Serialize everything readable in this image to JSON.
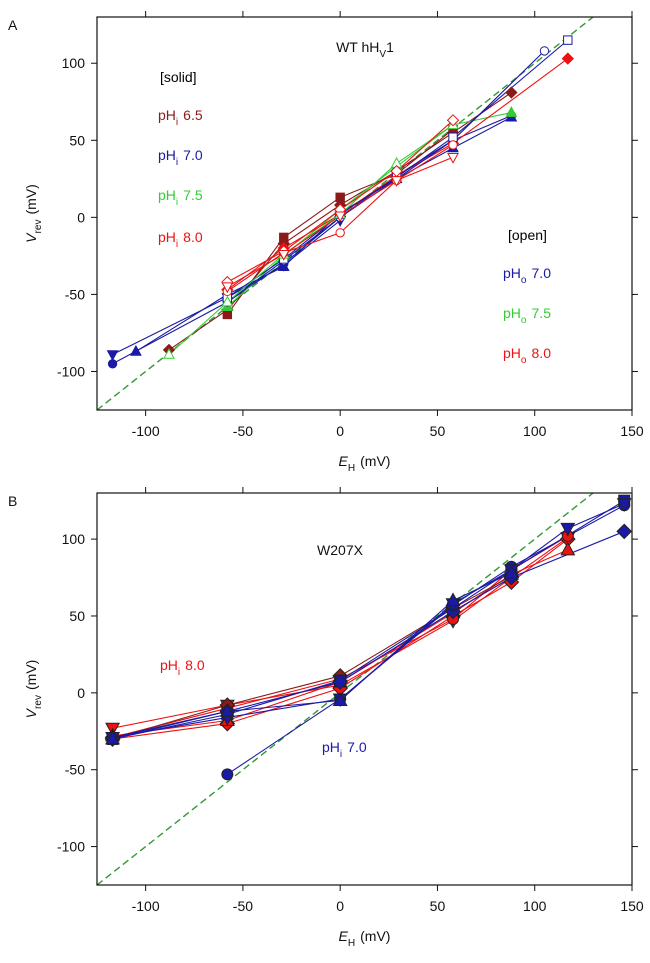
{
  "chart_data": [
    {
      "type": "line",
      "panel": "A",
      "title": {
        "text": "WT hH",
        "sub": "V",
        "rest": "1"
      },
      "xlabel": {
        "text": "E",
        "sub": "H",
        "rest": "(mV)"
      },
      "ylabel": {
        "text": "V",
        "sub": "rev",
        "rest": "(mV)"
      },
      "xlim": [
        -125,
        150
      ],
      "ylim": [
        -125,
        130
      ],
      "xticks": [
        -100,
        -50,
        0,
        50,
        100,
        150
      ],
      "yticks": [
        -100,
        -50,
        0,
        50,
        100
      ],
      "identity_line": {
        "color": "#339933",
        "dashed": true
      },
      "annotations": [
        {
          "text": "[solid]",
          "color": "#000000"
        },
        {
          "text": "pH",
          "sub": "i",
          "rest": "6.5",
          "color": "#8b1a1a"
        },
        {
          "text": "pH",
          "sub": "i",
          "rest": "7.0",
          "color": "#1a1aa6"
        },
        {
          "text": "pH",
          "sub": "i",
          "rest": "7.5",
          "color": "#33cc33"
        },
        {
          "text": "pH",
          "sub": "i",
          "rest": "8.0",
          "color": "#ee1111"
        },
        {
          "text": "[open]",
          "color": "#000000"
        },
        {
          "text": "pH",
          "sub": "o",
          "rest": "7.0",
          "color": "#1a1aa6"
        },
        {
          "text": "pH",
          "sub": "o",
          "rest": "7.5",
          "color": "#33cc33"
        },
        {
          "text": "pH",
          "sub": "o",
          "rest": "8.0",
          "color": "#ee1111"
        }
      ],
      "series": [
        {
          "color": "#8b1a1a",
          "marker": "square",
          "filled": true,
          "x": [
            -58,
            -29,
            0,
            29,
            58
          ],
          "values": [
            -63,
            -13,
            13,
            28,
            57
          ]
        },
        {
          "color": "#8b1a1a",
          "marker": "diamond",
          "filled": true,
          "x": [
            -88,
            -58,
            -29,
            0,
            29,
            58,
            88
          ],
          "values": [
            -86,
            -60,
            -17,
            8,
            30,
            55,
            81
          ]
        },
        {
          "color": "#1a1aa6",
          "marker": "circle",
          "filled": true,
          "x": [
            -117,
            -58,
            -29,
            0,
            29,
            58,
            88
          ],
          "values": [
            -95,
            -55,
            -30,
            0,
            27,
            50,
            66
          ]
        },
        {
          "color": "#1a1aa6",
          "marker": "triangle",
          "filled": true,
          "x": [
            -105,
            -58,
            -29,
            0,
            29,
            58,
            88
          ],
          "values": [
            -87,
            -50,
            -32,
            3,
            25,
            45,
            65
          ]
        },
        {
          "color": "#1a1aa6",
          "marker": "triangle-down",
          "filled": true,
          "x": [
            -117,
            -58,
            -29,
            0
          ],
          "values": [
            -89,
            -52,
            -31,
            -2
          ]
        },
        {
          "color": "#33cc33",
          "marker": "triangle",
          "filled": true,
          "x": [
            -58,
            -29,
            0,
            29,
            58,
            88
          ],
          "values": [
            -58,
            -25,
            5,
            33,
            60,
            68
          ]
        },
        {
          "color": "#ee1111",
          "marker": "diamond",
          "filled": true,
          "x": [
            -58,
            -29,
            0,
            29,
            58,
            117
          ],
          "values": [
            -47,
            -20,
            2,
            27,
            48,
            103
          ]
        },
        {
          "color": "#1a1aa6",
          "marker": "circle",
          "filled": false,
          "x": [
            -58,
            -29,
            0,
            29,
            58,
            105
          ],
          "values": [
            -55,
            -28,
            0,
            25,
            50,
            108
          ]
        },
        {
          "color": "#1a1aa6",
          "marker": "square",
          "filled": false,
          "x": [
            -58,
            -29,
            0,
            29,
            58,
            117
          ],
          "values": [
            -52,
            -27,
            2,
            26,
            52,
            115
          ]
        },
        {
          "color": "#33cc33",
          "marker": "triangle",
          "filled": false,
          "x": [
            -88,
            -58,
            -29,
            0,
            29,
            58
          ],
          "values": [
            -89,
            -55,
            -24,
            2,
            35,
            60
          ]
        },
        {
          "color": "#ee1111",
          "marker": "circle",
          "filled": false,
          "x": [
            -58,
            -29,
            0,
            29,
            58
          ],
          "values": [
            -48,
            -23,
            -10,
            24,
            47
          ]
        },
        {
          "color": "#ee1111",
          "marker": "diamond",
          "filled": false,
          "x": [
            -58,
            -29,
            0,
            29,
            58
          ],
          "values": [
            -42,
            -22,
            5,
            30,
            63
          ]
        },
        {
          "color": "#ee1111",
          "marker": "triangle-down",
          "filled": false,
          "x": [
            -58,
            -29,
            0,
            29,
            58
          ],
          "values": [
            -45,
            -24,
            1,
            24,
            39
          ]
        }
      ]
    },
    {
      "type": "line",
      "panel": "B",
      "title": {
        "text": "W207X"
      },
      "xlabel": {
        "text": "E",
        "sub": "H",
        "rest": "(mV)"
      },
      "ylabel": {
        "text": "V",
        "sub": "rev",
        "rest": "(mV)"
      },
      "xlim": [
        -125,
        150
      ],
      "ylim": [
        -125,
        130
      ],
      "xticks": [
        -100,
        -50,
        0,
        50,
        100,
        150
      ],
      "yticks": [
        -100,
        -50,
        0,
        50,
        100
      ],
      "identity_line": {
        "color": "#339933",
        "dashed": true
      },
      "marker_edge": "#222222",
      "annotations": [
        {
          "text": "pH",
          "sub": "i",
          "rest": "8.0",
          "color": "#ee1111"
        },
        {
          "text": "pH",
          "sub": "i",
          "rest": "7.0",
          "color": "#1a1aa6"
        }
      ],
      "series": [
        {
          "color": "#ee1111",
          "marker": "triangle-down",
          "filled": true,
          "x": [
            -117,
            -58,
            0,
            58,
            88,
            117
          ],
          "values": [
            -23,
            -8,
            5,
            47,
            75,
            101
          ]
        },
        {
          "color": "#ee1111",
          "marker": "diamond",
          "filled": true,
          "x": [
            -117,
            -58,
            0,
            58,
            88,
            117
          ],
          "values": [
            -30,
            -20,
            3,
            50,
            72,
            100
          ]
        },
        {
          "color": "#ee1111",
          "marker": "triangle",
          "filled": true,
          "x": [
            -117,
            -58,
            0,
            58,
            88,
            117
          ],
          "values": [
            -28,
            -18,
            7,
            52,
            77,
            93
          ]
        },
        {
          "color": "#ee1111",
          "marker": "circle",
          "filled": true,
          "x": [
            -117,
            -58,
            0,
            58,
            88,
            117
          ],
          "values": [
            -29,
            -10,
            9,
            48,
            80,
            102
          ]
        },
        {
          "color": "#8b1a1a",
          "marker": "diamond",
          "filled": true,
          "x": [
            -117,
            -58,
            0,
            58,
            88
          ],
          "values": [
            -30,
            -8,
            11,
            55,
            76
          ]
        },
        {
          "color": "#1a1aa6",
          "marker": "square",
          "filled": true,
          "x": [
            -117,
            -58,
            0,
            58,
            88,
            146
          ],
          "values": [
            -30,
            -14,
            8,
            55,
            80,
            125
          ]
        },
        {
          "color": "#1a1aa6",
          "marker": "diamond",
          "filled": true,
          "x": [
            -117,
            -58,
            0,
            58,
            88,
            146
          ],
          "values": [
            -29,
            -12,
            7,
            53,
            75,
            105
          ]
        },
        {
          "color": "#1a1aa6",
          "marker": "circle",
          "filled": true,
          "x": [
            -58,
            0,
            58,
            88,
            146
          ],
          "values": [
            -53,
            -4,
            57,
            82,
            122
          ]
        },
        {
          "color": "#1a1aa6",
          "marker": "triangle-down",
          "filled": true,
          "x": [
            -117,
            -58,
            0,
            58,
            88,
            117,
            146
          ],
          "values": [
            -29,
            -16,
            -4,
            58,
            80,
            107,
            123
          ]
        },
        {
          "color": "#1a1aa6",
          "marker": "triangle",
          "filled": true,
          "x": [
            -117,
            -58,
            0,
            58,
            88
          ],
          "values": [
            -30,
            -12,
            -5,
            60,
            78
          ]
        }
      ]
    }
  ]
}
